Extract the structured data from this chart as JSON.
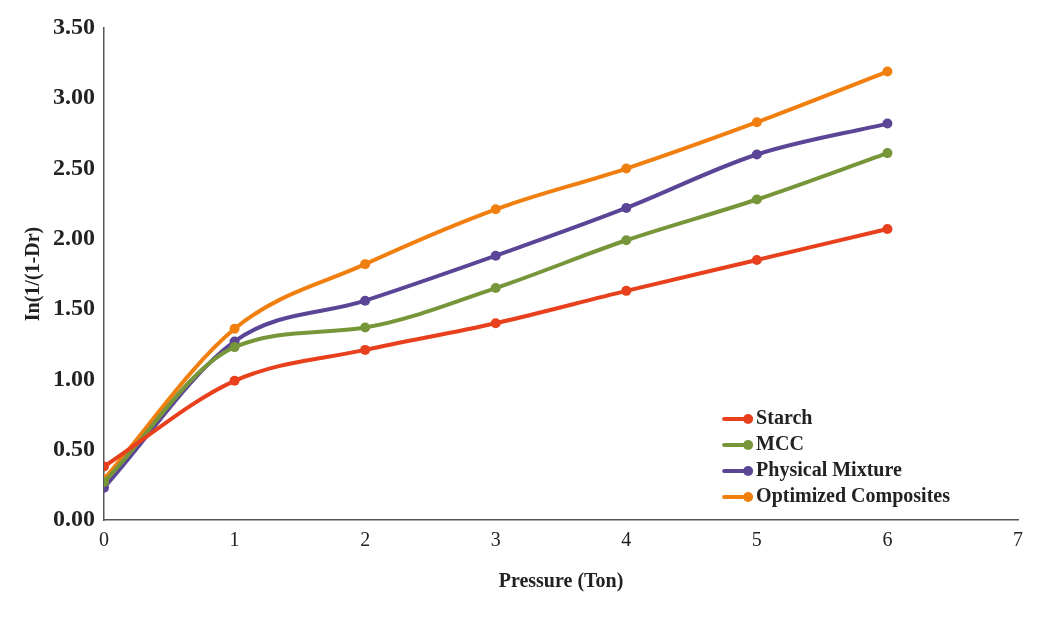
{
  "chart_data": {
    "type": "line",
    "xlabel": "Pressure (Ton)",
    "ylabel": "In(1/(1-Dr)",
    "x": [
      0,
      1,
      2,
      3,
      4,
      5,
      6
    ],
    "series": [
      {
        "name": "Starch",
        "color": "#e8401c",
        "values": [
          0.38,
          0.99,
          1.21,
          1.4,
          1.63,
          1.85,
          2.07
        ]
      },
      {
        "name": "MCC",
        "color": "#77963a",
        "values": [
          0.27,
          1.23,
          1.37,
          1.65,
          1.99,
          2.28,
          2.61
        ]
      },
      {
        "name": "Physical Mixture",
        "color": "#5b4597",
        "values": [
          0.23,
          1.27,
          1.56,
          1.88,
          2.22,
          2.6,
          2.82
        ]
      },
      {
        "name": "Optimized Composites",
        "color": "#f07f0f",
        "values": [
          0.29,
          1.36,
          1.82,
          2.21,
          2.5,
          2.83,
          3.19
        ]
      }
    ],
    "xlim": [
      0,
      7
    ],
    "xticks": [
      0,
      1,
      2,
      3,
      4,
      5,
      6,
      7
    ],
    "ylim": [
      0,
      3.5
    ],
    "yticks": [
      {
        "value": 0,
        "label": "0.00"
      },
      {
        "value": 0.5,
        "label": "0.50"
      },
      {
        "value": 1,
        "label": "1.00"
      },
      {
        "value": 1.5,
        "label": "1.50"
      },
      {
        "value": 2,
        "label": "2.00"
      },
      {
        "value": 2.5,
        "label": "2.50"
      },
      {
        "value": 3,
        "label": "3.00"
      },
      {
        "value": 3.5,
        "label": "3.50"
      }
    ],
    "grid": false,
    "legend": "bottom right",
    "marker": "circle",
    "line_style": "solid"
  }
}
